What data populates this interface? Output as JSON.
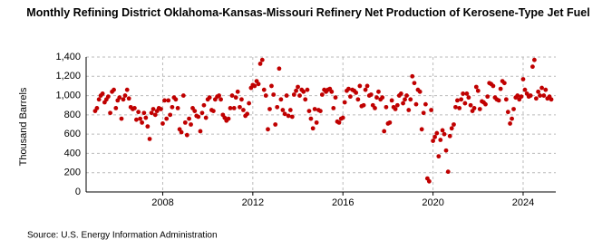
{
  "chart_data": {
    "type": "scatter",
    "title": "Monthly Refining District Oklahoma-Kansas-Missouri Refinery Net Production of Kerosene-Type Jet Fuel",
    "y_label": "Thousand Barrels",
    "source": "Source: U.S. Energy Information Administration",
    "color": "#c00000",
    "grid": true,
    "xlim": [
      2004.6,
      2025.45
    ],
    "xticks": [
      2008,
      2012,
      2016,
      2020,
      2024
    ],
    "ylim": [
      0,
      1400
    ],
    "yticks": [
      0,
      200,
      400,
      600,
      800,
      {
        "value": 1000,
        "label": "1,000"
      },
      {
        "value": 1200,
        "label": "1,200"
      },
      {
        "value": 1400,
        "label": "1,400"
      }
    ],
    "x": [
      2005.0,
      2005.08,
      2005.17,
      2005.25,
      2005.33,
      2005.42,
      2005.5,
      2005.58,
      2005.67,
      2005.75,
      2005.83,
      2005.92,
      2006.0,
      2006.08,
      2006.17,
      2006.25,
      2006.33,
      2006.42,
      2006.5,
      2006.58,
      2006.67,
      2006.75,
      2006.83,
      2006.92,
      2007.0,
      2007.08,
      2007.17,
      2007.25,
      2007.33,
      2007.42,
      2007.5,
      2007.58,
      2007.67,
      2007.75,
      2007.83,
      2007.92,
      2008.0,
      2008.08,
      2008.17,
      2008.25,
      2008.33,
      2008.42,
      2008.5,
      2008.58,
      2008.67,
      2008.75,
      2008.83,
      2008.92,
      2009.0,
      2009.08,
      2009.17,
      2009.25,
      2009.33,
      2009.42,
      2009.5,
      2009.58,
      2009.67,
      2009.75,
      2009.83,
      2009.92,
      2010.0,
      2010.08,
      2010.17,
      2010.25,
      2010.33,
      2010.42,
      2010.5,
      2010.58,
      2010.67,
      2010.75,
      2010.83,
      2010.92,
      2011.0,
      2011.08,
      2011.17,
      2011.25,
      2011.33,
      2011.42,
      2011.5,
      2011.58,
      2011.67,
      2011.75,
      2011.83,
      2011.92,
      2012.0,
      2012.08,
      2012.17,
      2012.25,
      2012.33,
      2012.42,
      2012.5,
      2012.58,
      2012.67,
      2012.75,
      2012.83,
      2012.92,
      2013.0,
      2013.08,
      2013.17,
      2013.25,
      2013.33,
      2013.42,
      2013.5,
      2013.58,
      2013.67,
      2013.75,
      2013.83,
      2013.92,
      2014.0,
      2014.08,
      2014.17,
      2014.25,
      2014.33,
      2014.42,
      2014.5,
      2014.58,
      2014.67,
      2014.75,
      2014.83,
      2014.92,
      2015.0,
      2015.08,
      2015.17,
      2015.25,
      2015.33,
      2015.42,
      2015.5,
      2015.58,
      2015.67,
      2015.75,
      2015.83,
      2015.92,
      2016.0,
      2016.08,
      2016.17,
      2016.25,
      2016.33,
      2016.42,
      2016.5,
      2016.58,
      2016.67,
      2016.75,
      2016.83,
      2016.92,
      2017.0,
      2017.08,
      2017.17,
      2017.25,
      2017.33,
      2017.42,
      2017.5,
      2017.58,
      2017.67,
      2017.75,
      2017.83,
      2017.92,
      2018.0,
      2018.08,
      2018.17,
      2018.25,
      2018.33,
      2018.42,
      2018.5,
      2018.58,
      2018.67,
      2018.75,
      2018.83,
      2018.92,
      2019.0,
      2019.08,
      2019.17,
      2019.25,
      2019.33,
      2019.42,
      2019.5,
      2019.58,
      2019.67,
      2019.75,
      2019.83,
      2019.92,
      2020.0,
      2020.08,
      2020.17,
      2020.25,
      2020.33,
      2020.42,
      2020.5,
      2020.58,
      2020.67,
      2020.75,
      2020.83,
      2020.92,
      2021.0,
      2021.08,
      2021.17,
      2021.25,
      2021.33,
      2021.42,
      2021.5,
      2021.58,
      2021.67,
      2021.75,
      2021.83,
      2021.92,
      2022.0,
      2022.08,
      2022.17,
      2022.25,
      2022.33,
      2022.42,
      2022.5,
      2022.58,
      2022.67,
      2022.75,
      2022.83,
      2022.92,
      2023.0,
      2023.08,
      2023.17,
      2023.25,
      2023.33,
      2023.42,
      2023.5,
      2023.58,
      2023.67,
      2023.75,
      2023.83,
      2023.92,
      2024.0,
      2024.08,
      2024.17,
      2024.25,
      2024.33,
      2024.42,
      2024.5,
      2024.58,
      2024.67,
      2024.75,
      2024.83,
      2024.92,
      2025.0,
      2025.08,
      2025.17,
      2025.25
    ],
    "values": [
      840,
      870,
      960,
      1000,
      1020,
      930,
      960,
      990,
      820,
      1040,
      1060,
      870,
      950,
      980,
      760,
      960,
      1000,
      1060,
      970,
      880,
      860,
      870,
      750,
      830,
      760,
      720,
      820,
      770,
      680,
      550,
      820,
      860,
      800,
      840,
      870,
      860,
      710,
      950,
      760,
      950,
      800,
      880,
      980,
      960,
      870,
      650,
      620,
      1000,
      720,
      590,
      760,
      700,
      870,
      840,
      790,
      780,
      630,
      820,
      900,
      770,
      960,
      980,
      850,
      840,
      960,
      990,
      1000,
      960,
      800,
      770,
      740,
      760,
      870,
      1000,
      870,
      980,
      1040,
      880,
      960,
      850,
      790,
      810,
      920,
      1080,
      1110,
      1100,
      1150,
      1120,
      1330,
      1370,
      1060,
      1000,
      650,
      860,
      1100,
      1010,
      700,
      880,
      1280,
      960,
      850,
      810,
      1000,
      790,
      850,
      780,
      1010,
      1050,
      1090,
      1000,
      1060,
      1040,
      960,
      1060,
      840,
      760,
      660,
      860,
      720,
      850,
      840,
      1010,
      1060,
      1040,
      1060,
      1070,
      1040,
      870,
      980,
      730,
      720,
      760,
      770,
      930,
      1050,
      1070,
      990,
      1060,
      1050,
      1030,
      960,
      1100,
      890,
      900,
      1060,
      1100,
      1000,
      1010,
      900,
      870,
      980,
      1040,
      960,
      980,
      630,
      880,
      710,
      720,
      950,
      880,
      860,
      900,
      1000,
      1020,
      920,
      960,
      1000,
      850,
      960,
      1200,
      1130,
      910,
      1060,
      1040,
      650,
      820,
      910,
      140,
      110,
      850,
      530,
      570,
      610,
      370,
      540,
      640,
      600,
      430,
      210,
      580,
      660,
      700,
      880,
      950,
      870,
      960,
      1020,
      920,
      1020,
      980,
      900,
      840,
      870,
      1090,
      1050,
      860,
      940,
      930,
      910,
      990,
      1130,
      1120,
      1100,
      980,
      960,
      950,
      1070,
      1150,
      1130,
      960,
      830,
      710,
      760,
      860,
      980,
      1000,
      960,
      990,
      1170,
      1060,
      1020,
      990,
      1000,
      1300,
      1370,
      970,
      1040,
      1000,
      1080,
      1000,
      1060,
      970,
      990,
      960
    ]
  }
}
